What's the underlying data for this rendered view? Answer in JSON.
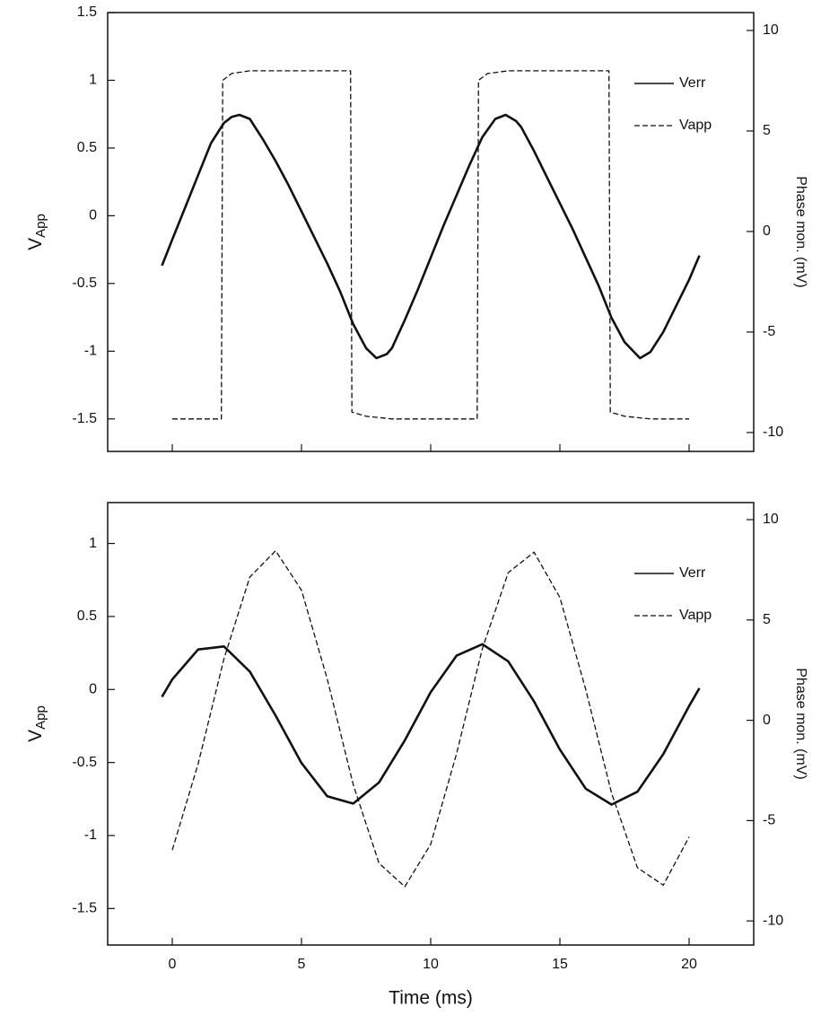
{
  "chart_data": [
    {
      "type": "line",
      "y_label": "V",
      "y_label_sub": "App",
      "y2_label": "Phase mon. (mV)",
      "xlim": [
        -2.5,
        22.5
      ],
      "xticks": [
        0,
        5,
        10,
        15,
        20
      ],
      "show_xtick_labels": false,
      "ylim": [
        -1.74,
        1.5
      ],
      "yticks": [
        -1.5,
        -1.0,
        -0.5,
        0.0,
        0.5,
        1.0,
        1.5
      ],
      "y2lim": [
        -10.94,
        10.89
      ],
      "y2ticks": [
        -10,
        -5,
        0,
        5,
        10
      ],
      "legend": "upper right",
      "series": [
        {
          "name": "Verr",
          "color": "#111111",
          "dash": false,
          "axis": "y2",
          "x": [
            -0.4,
            0,
            0.5,
            1,
            1.5,
            2,
            2.3,
            2.6,
            3,
            3.5,
            4,
            4.5,
            5,
            5.5,
            6,
            6.5,
            7,
            7.5,
            7.9,
            8.3,
            8.5,
            9,
            9.5,
            10,
            10.5,
            11,
            11.5,
            12,
            12.5,
            12.9,
            13.3,
            13.5,
            14,
            14.5,
            15,
            15.5,
            16,
            16.5,
            17,
            17.5,
            18.1,
            18.5,
            19,
            19.5,
            20,
            20.4
          ],
          "values": [
            -1.7,
            -0.4,
            1.2,
            2.8,
            4.4,
            5.4,
            5.7,
            5.8,
            5.6,
            4.6,
            3.5,
            2.3,
            1.0,
            -0.3,
            -1.6,
            -3.0,
            -4.6,
            -5.8,
            -6.3,
            -6.1,
            -5.8,
            -4.4,
            -2.9,
            -1.3,
            0.3,
            1.8,
            3.3,
            4.7,
            5.6,
            5.8,
            5.5,
            5.2,
            4.0,
            2.7,
            1.4,
            0.1,
            -1.3,
            -2.7,
            -4.3,
            -5.5,
            -6.3,
            -6.0,
            -5.0,
            -3.7,
            -2.4,
            -1.2
          ]
        },
        {
          "name": "Vapp",
          "color": "#111111",
          "dash": true,
          "x": [
            0,
            1.9,
            1.95,
            2.3,
            3,
            6.9,
            6.95,
            7.5,
            8.5,
            11.8,
            11.85,
            12.2,
            13,
            16.9,
            16.95,
            17.5,
            18.5,
            20
          ],
          "values": [
            -1.5,
            -1.5,
            1.0,
            1.05,
            1.07,
            1.07,
            -1.45,
            -1.48,
            -1.5,
            -1.5,
            1.0,
            1.05,
            1.07,
            1.07,
            -1.45,
            -1.48,
            -1.5,
            -1.5
          ]
        }
      ]
    },
    {
      "type": "line",
      "y_label": "V",
      "y_label_sub": "App",
      "y2_label": "Phase mon. (mV)",
      "x_label": "Time (ms)",
      "xlim": [
        -2.5,
        22.5
      ],
      "xticks": [
        0,
        5,
        10,
        15,
        20
      ],
      "show_xtick_labels": true,
      "ylim": [
        -1.75,
        1.28
      ],
      "yticks": [
        -1.5,
        -1.0,
        -0.5,
        0.0,
        0.5,
        1.0
      ],
      "y2lim": [
        -11.2,
        10.85
      ],
      "y2ticks": [
        -10,
        -5,
        0,
        5,
        10
      ],
      "legend": "upper right",
      "series": [
        {
          "name": "Verr",
          "color": "#111111",
          "dash": false,
          "axis": "y2",
          "x": [
            -0.4,
            0,
            1,
            2,
            3,
            4,
            5,
            6,
            7,
            8,
            9,
            10,
            11,
            12,
            13,
            14,
            15,
            16,
            17,
            18,
            19,
            20,
            20.4
          ],
          "values": [
            1.17,
            2.04,
            3.53,
            3.68,
            2.43,
            0.23,
            -2.13,
            -3.79,
            -4.15,
            -3.1,
            -1.0,
            1.4,
            3.22,
            3.79,
            2.94,
            0.94,
            -1.46,
            -3.41,
            -4.2,
            -3.56,
            -1.69,
            0.71,
            1.6
          ]
        },
        {
          "name": "Vapp",
          "color": "#111111",
          "dash": true,
          "x": [
            0,
            1,
            2,
            3,
            4,
            5,
            6,
            7,
            8,
            9,
            10,
            11,
            12,
            13,
            14,
            15,
            16,
            17,
            18,
            19,
            20
          ],
          "values": [
            -1.1,
            -0.51,
            0.21,
            0.77,
            0.95,
            0.68,
            0.07,
            -0.65,
            -1.19,
            -1.35,
            -1.06,
            -0.44,
            0.28,
            0.8,
            0.94,
            0.63,
            0.0,
            -0.71,
            -1.22,
            -1.34,
            -1.01
          ]
        }
      ]
    }
  ]
}
